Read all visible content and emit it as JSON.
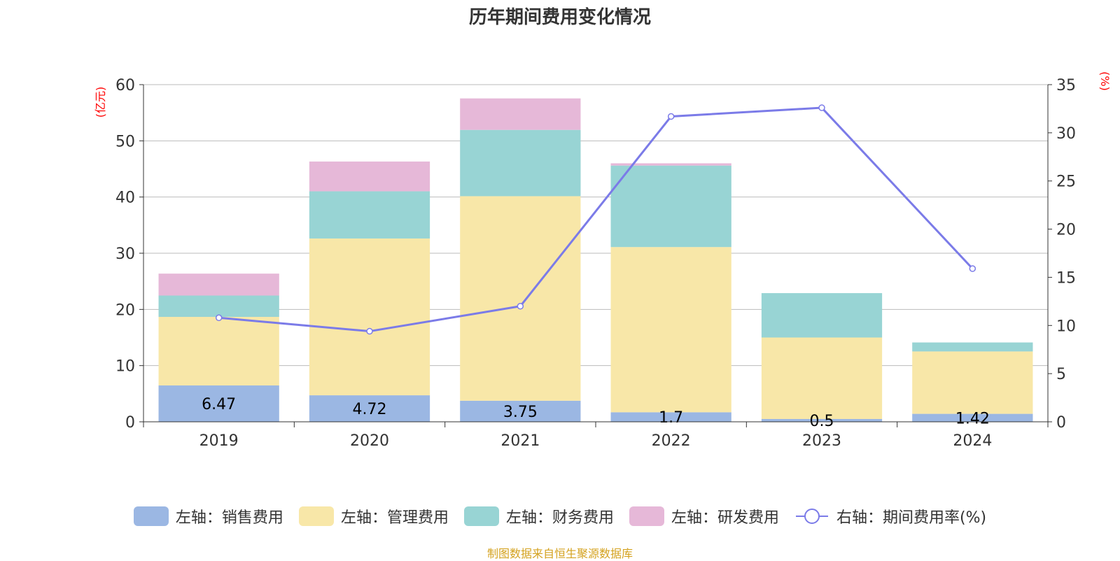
{
  "title": "历年期间费用变化情况",
  "source_note": "制图数据来自恒生聚源数据库",
  "colors": {
    "sales": "#9bb7e3",
    "admin": "#f8e7a8",
    "finance": "#98d4d4",
    "rnd": "#e6b8d8",
    "rate": "#7b7be8",
    "axis_unit": "#ff0000",
    "grid": "#bbbbbb",
    "text": "#333333"
  },
  "chart_data": {
    "type": "bar",
    "stacked": true,
    "title": "历年期间费用变化情况",
    "categories": [
      "2019",
      "2020",
      "2021",
      "2022",
      "2023",
      "2024"
    ],
    "left_axis": {
      "unit_label": "(亿元)",
      "ylim": [
        0,
        60
      ],
      "ticks": [
        "0",
        "10",
        "20",
        "30",
        "40",
        "50",
        "60"
      ]
    },
    "right_axis": {
      "unit_label": "(%)",
      "ylim": [
        0,
        35
      ],
      "ticks": [
        "0",
        "5",
        "10",
        "15",
        "20",
        "25",
        "30",
        "35"
      ]
    },
    "grid": true,
    "legend_position": "bottom",
    "series": [
      {
        "key": "sales",
        "name": "左轴：销售费用",
        "axis": "left",
        "type": "bar",
        "values": [
          6.47,
          4.72,
          3.75,
          1.7,
          0.5,
          1.42
        ],
        "labels": [
          "6.47",
          "4.72",
          "3.75",
          "1.7",
          "0.5",
          "1.42"
        ]
      },
      {
        "key": "admin",
        "name": "左轴：管理费用",
        "axis": "left",
        "type": "bar",
        "values": [
          12.2,
          27.9,
          36.4,
          29.4,
          14.5,
          11.1
        ]
      },
      {
        "key": "finance",
        "name": "左轴：财务费用",
        "axis": "left",
        "type": "bar",
        "values": [
          3.8,
          8.4,
          11.8,
          14.5,
          7.9,
          1.6
        ]
      },
      {
        "key": "rnd",
        "name": "左轴：研发费用",
        "axis": "left",
        "type": "bar",
        "values": [
          3.9,
          5.3,
          5.6,
          0.4,
          0,
          0
        ]
      },
      {
        "key": "rate",
        "name": "右轴：期间费用率(%)",
        "axis": "right",
        "type": "line",
        "values": [
          10.8,
          9.4,
          12.0,
          31.7,
          32.6,
          15.9
        ]
      }
    ]
  }
}
